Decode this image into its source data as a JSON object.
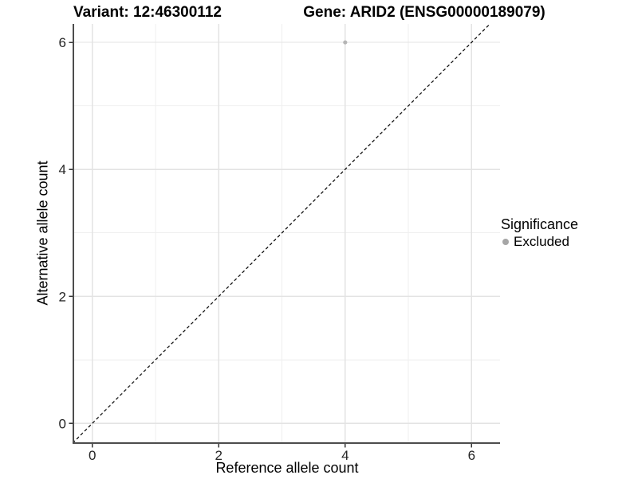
{
  "titles": {
    "variant": "Variant: 12:46300112",
    "gene": "Gene: ARID2 (ENSG00000189079)"
  },
  "chart_data": {
    "type": "scatter",
    "title": "Variant: 12:46300112 | Gene: ARID2 (ENSG00000189079)",
    "xlabel": "Reference allele count",
    "ylabel": "Alternative allele count",
    "xlim": [
      -0.3,
      6.45
    ],
    "ylim": [
      -0.31,
      6.29
    ],
    "x_ticks": [
      0,
      2,
      4,
      6
    ],
    "y_ticks": [
      0,
      2,
      4,
      6
    ],
    "x_minor_ticks": [
      1,
      3,
      5
    ],
    "y_minor_ticks": [
      1,
      3,
      5
    ],
    "grid": "major+minor",
    "series": [
      {
        "name": "Excluded",
        "color": "#b5b5b5",
        "points": [
          {
            "x": 4,
            "y": 6
          }
        ]
      }
    ],
    "identity_line": {
      "style": "dashed",
      "color": "#000000",
      "from": [
        -0.31,
        -0.31
      ],
      "to": [
        6.29,
        6.29
      ]
    },
    "legend": {
      "title": "Significance",
      "position": "right",
      "items": [
        {
          "label": "Excluded",
          "color": "#a6a6a6"
        }
      ]
    }
  },
  "colors": {
    "background": "#ffffff",
    "grid_major": "#e3e3e3",
    "grid_minor": "#efefef",
    "axis_line": "#4d4d4d",
    "tick": "#333333",
    "text": "#000000"
  }
}
